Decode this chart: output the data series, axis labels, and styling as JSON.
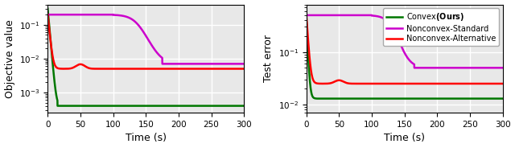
{
  "ylabel_left": "Objective value",
  "ylabel_right": "Test error",
  "xlabel": "Time (s)",
  "xlim": [
    0,
    300
  ],
  "ylim_left": [
    0.00025,
    0.4
  ],
  "ylim_right": [
    0.007,
    0.8
  ],
  "colors": {
    "convex": "#007700",
    "nonconvex_std": "#cc00cc",
    "nonconvex_alt": "#ff0000"
  },
  "legend_labels": [
    "Convex(Ours)",
    "Nonconvex-Standard",
    "Nonconvex-Alternative"
  ],
  "background_color": "#e8e8e8",
  "grid_color": "white",
  "linewidth": 1.8,
  "figsize": [
    6.4,
    1.84
  ],
  "dpi": 100
}
